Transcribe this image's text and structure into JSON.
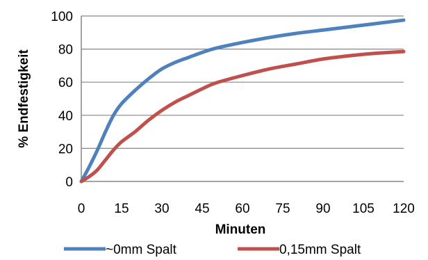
{
  "chart_data": {
    "type": "line",
    "title": "",
    "xlabel": "Minuten",
    "ylabel": "% Endfestigkeit",
    "xlim": [
      0,
      120
    ],
    "ylim": [
      0,
      100
    ],
    "xticks": [
      "0",
      "15",
      "30",
      "45",
      "60",
      "75",
      "90",
      "105",
      "120"
    ],
    "yticks": [
      "0",
      "20",
      "40",
      "60",
      "80",
      "100"
    ],
    "grid": "horizontal",
    "legend_position": "bottom",
    "series": [
      {
        "name": "~0mm Spalt",
        "color": "#4f81bd",
        "x": [
          0,
          3,
          6,
          9,
          12,
          15,
          20,
          25,
          30,
          35,
          40,
          45,
          50,
          60,
          70,
          80,
          90,
          100,
          110,
          120
        ],
        "y": [
          0,
          9,
          19,
          30,
          40,
          47,
          55,
          62,
          68,
          72,
          75,
          78,
          80.5,
          84,
          87,
          89.5,
          91.5,
          93.5,
          95.5,
          97.5
        ]
      },
      {
        "name": "0,15mm Spalt",
        "color": "#c0504d",
        "x": [
          0,
          3,
          6,
          9,
          12,
          15,
          20,
          25,
          30,
          35,
          40,
          45,
          50,
          60,
          70,
          80,
          90,
          100,
          110,
          120
        ],
        "y": [
          0,
          3,
          7,
          13,
          19,
          24,
          30,
          37,
          43,
          48,
          52,
          56,
          59.5,
          64,
          68,
          71,
          74,
          76,
          77.5,
          78.5
        ]
      }
    ]
  }
}
